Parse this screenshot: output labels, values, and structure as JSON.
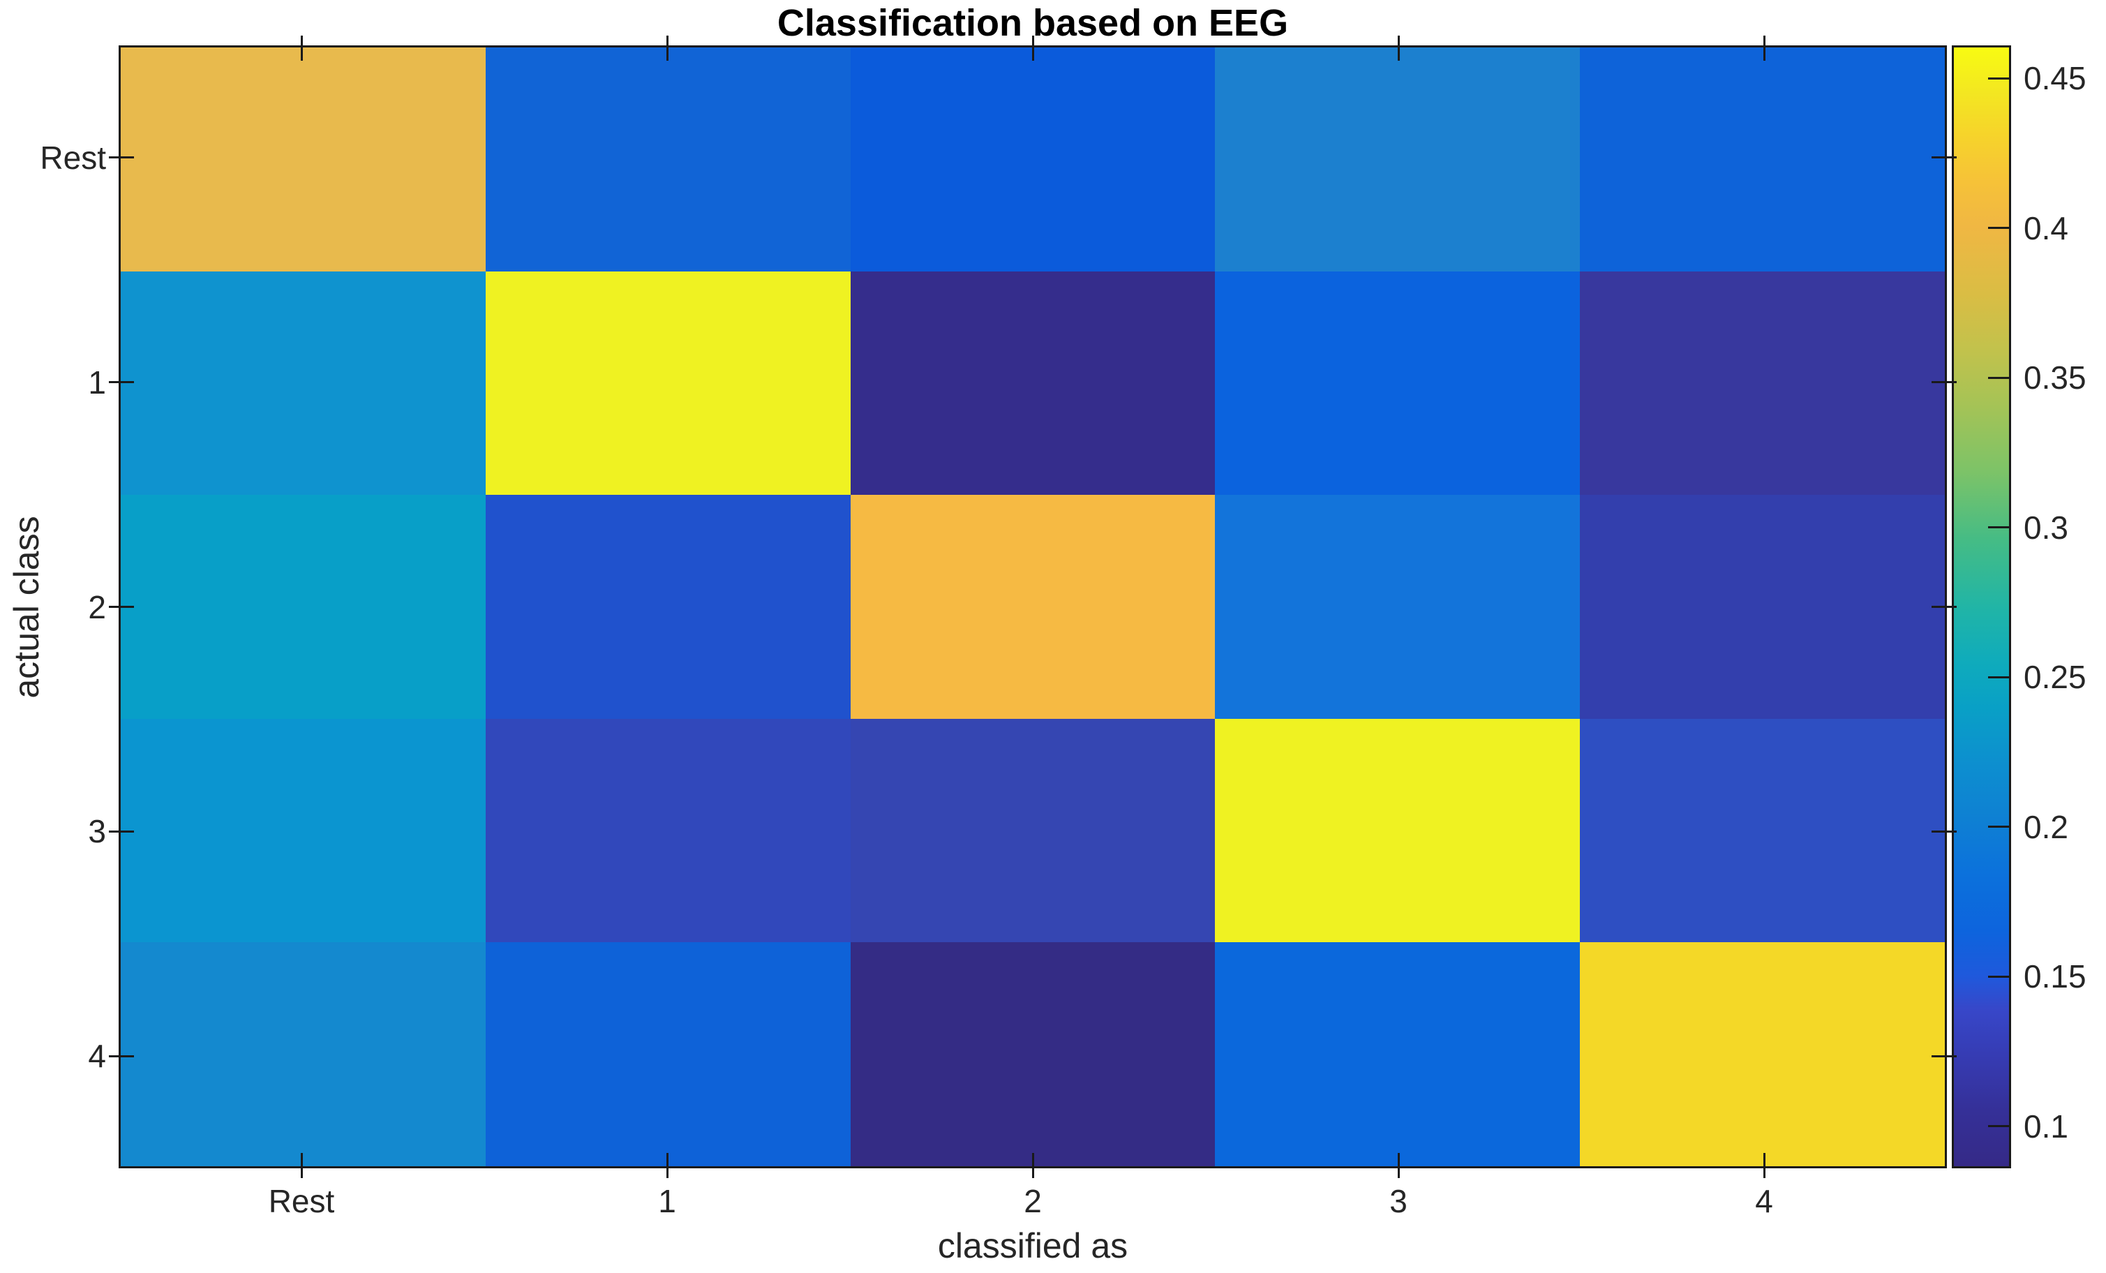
{
  "title": "Classification based on EEG",
  "chart_data": {
    "type": "heatmap",
    "title": "Classification based on EEG",
    "xlabel": "classified as",
    "ylabel": "actual class",
    "x_tick_labels": [
      "Rest",
      "1",
      "2",
      "3",
      "4"
    ],
    "y_tick_labels": [
      "Rest",
      "1",
      "2",
      "3",
      "4"
    ],
    "values": [
      [
        0.41,
        0.15,
        0.14,
        0.175,
        0.15
      ],
      [
        0.2,
        0.46,
        0.086,
        0.15,
        0.105
      ],
      [
        0.21,
        0.125,
        0.405,
        0.16,
        0.1
      ],
      [
        0.2,
        0.11,
        0.105,
        0.46,
        0.125
      ],
      [
        0.185,
        0.15,
        0.09,
        0.152,
        0.435
      ]
    ],
    "cell_colors": [
      [
        "#e8ba4d",
        "#1164d6",
        "#0b5bdb",
        "#1c80cf",
        "#0e63d9"
      ],
      [
        "#0f93cf",
        "#eff222",
        "#352d8c",
        "#0b63de",
        "#38389e"
      ],
      [
        "#089fc8",
        "#2052cd",
        "#f6ba43",
        "#1374da",
        "#333fad"
      ],
      [
        "#0b95d0",
        "#3148bb",
        "#3546b2",
        "#eff222",
        "#2e4fc2"
      ],
      [
        "#1489cf",
        "#0e62d8",
        "#342c85",
        "#0b68dc",
        "#f4d827"
      ]
    ],
    "colorbar": {
      "vmin": 0.086,
      "vmax": 0.461,
      "tick_values": [
        0.45,
        0.4,
        0.35,
        0.3,
        0.25,
        0.2,
        0.15,
        0.1
      ],
      "tick_labels": [
        "0.45",
        "0.4",
        "0.35",
        "0.3",
        "0.25",
        "0.2",
        "0.15",
        "0.1"
      ],
      "colormap_name": "parula",
      "gradient_stops": [
        {
          "pos": 0.0,
          "color": "#352a87"
        },
        {
          "pos": 0.05,
          "color": "#353098"
        },
        {
          "pos": 0.1,
          "color": "#363cb4"
        },
        {
          "pos": 0.14,
          "color": "#3747c9"
        },
        {
          "pos": 0.17,
          "color": "#1f59dc"
        },
        {
          "pos": 0.21,
          "color": "#0d64dd"
        },
        {
          "pos": 0.26,
          "color": "#0c71dc"
        },
        {
          "pos": 0.31,
          "color": "#0e80d3"
        },
        {
          "pos": 0.36,
          "color": "#0d8fcf"
        },
        {
          "pos": 0.41,
          "color": "#09a0c6"
        },
        {
          "pos": 0.45,
          "color": "#0fabbc"
        },
        {
          "pos": 0.5,
          "color": "#21b5a6"
        },
        {
          "pos": 0.56,
          "color": "#45bc85"
        },
        {
          "pos": 0.62,
          "color": "#7cc368"
        },
        {
          "pos": 0.68,
          "color": "#a5c356"
        },
        {
          "pos": 0.73,
          "color": "#c2c24c"
        },
        {
          "pos": 0.78,
          "color": "#dabd44"
        },
        {
          "pos": 0.84,
          "color": "#f0b743"
        },
        {
          "pos": 0.88,
          "color": "#f6c238"
        },
        {
          "pos": 0.92,
          "color": "#f6d32b"
        },
        {
          "pos": 0.96,
          "color": "#f3e721"
        },
        {
          "pos": 1.0,
          "color": "#f8fb12"
        }
      ]
    },
    "axis_color": "#262626",
    "title_color": "#000000",
    "background_color": "#ffffff",
    "legend": "none",
    "grid": "off"
  }
}
